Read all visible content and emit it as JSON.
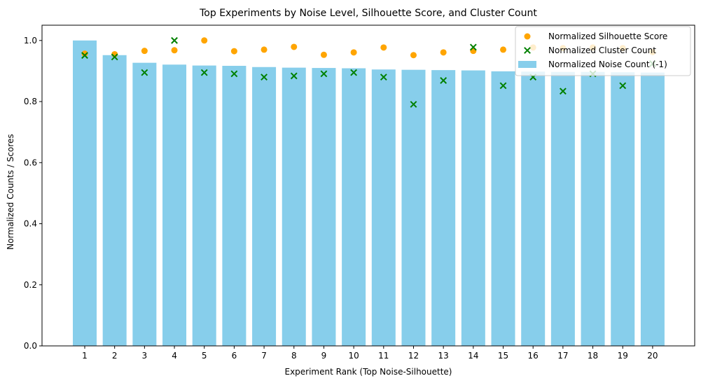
{
  "chart_data": {
    "type": "bar",
    "title": "Top Experiments by Noise Level, Silhouette Score, and Cluster Count",
    "xlabel": "Experiment Rank (Top Noise-Silhouette)",
    "ylabel": "Normalized Counts / Scores",
    "ylim": [
      0,
      1.05
    ],
    "yticks": [
      "0.0",
      "0.2",
      "0.4",
      "0.6",
      "0.8",
      "1.0"
    ],
    "categories": [
      "1",
      "2",
      "3",
      "4",
      "5",
      "6",
      "7",
      "8",
      "9",
      "10",
      "11",
      "12",
      "13",
      "14",
      "15",
      "16",
      "17",
      "18",
      "19",
      "20"
    ],
    "legend_position": "top-right",
    "series": [
      {
        "name": "Normalized Noise Count (-1)",
        "kind": "bar",
        "color": "#87ceeb",
        "values": [
          1.0,
          0.952,
          0.927,
          0.921,
          0.918,
          0.917,
          0.913,
          0.911,
          0.91,
          0.909,
          0.905,
          0.904,
          0.903,
          0.902,
          0.899,
          0.898,
          0.897,
          0.897,
          0.896,
          0.895
        ]
      },
      {
        "name": "Normalized Silhouette Score",
        "kind": "scatter-circle",
        "color": "#ffa500",
        "values": [
          0.957,
          0.955,
          0.966,
          0.968,
          1.0,
          0.965,
          0.97,
          0.979,
          0.953,
          0.961,
          0.977,
          0.952,
          0.961,
          0.966,
          0.97,
          0.977,
          0.975,
          0.977,
          0.975,
          0.962
        ]
      },
      {
        "name": "Normalized Cluster Count",
        "kind": "scatter-x",
        "color": "#008000",
        "values": [
          0.951,
          0.946,
          0.895,
          1.0,
          0.895,
          0.891,
          0.88,
          0.884,
          0.891,
          0.895,
          0.88,
          0.791,
          0.869,
          0.978,
          0.852,
          0.88,
          0.834,
          0.891,
          0.852,
          0.924
        ]
      }
    ]
  }
}
